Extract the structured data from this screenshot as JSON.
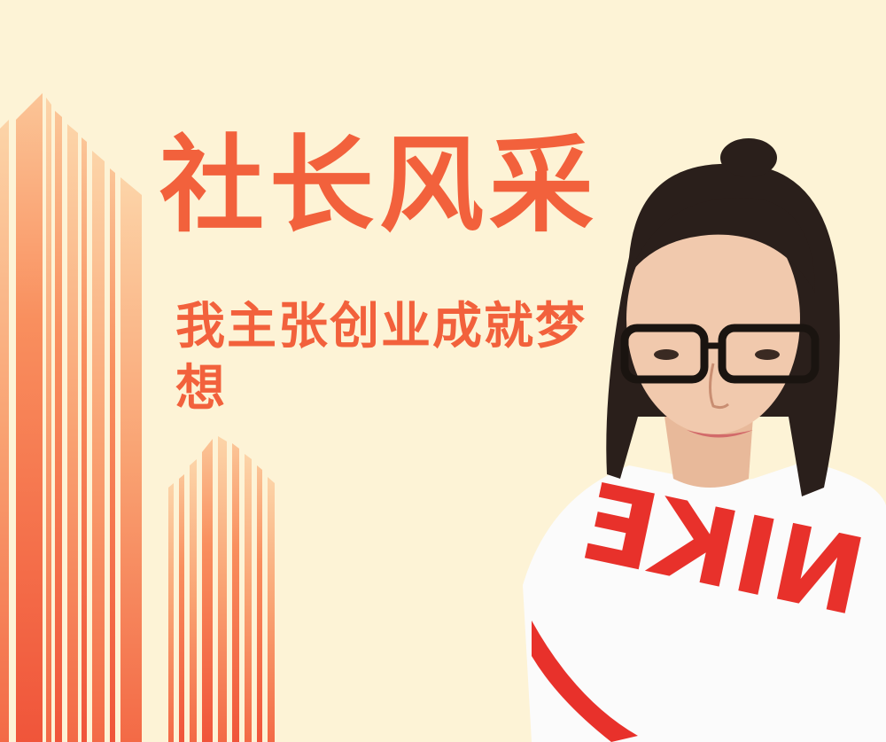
{
  "poster": {
    "title": "社长风采",
    "subtitle": "我主张创业成就梦想",
    "shirt_text": "NIKE"
  },
  "colors": {
    "background": "#fdf3d6",
    "accent": "#f2613c",
    "stripe_light": "#fbb98a",
    "stripe_mid": "#f78a5b",
    "stripe_dark": "#f0553a"
  },
  "icons": {
    "portrait": "person-photo",
    "decoration": "skyscraper-stripes"
  }
}
